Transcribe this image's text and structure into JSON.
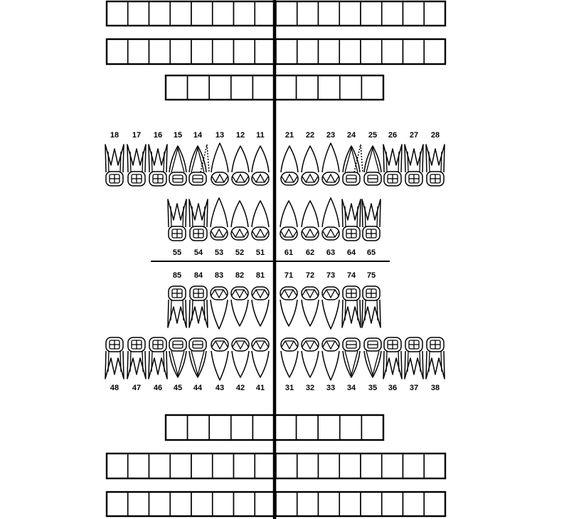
{
  "colors": {
    "ink": "#000000",
    "paper": "#ffffff"
  },
  "upper_permanent": [
    "18",
    "17",
    "16",
    "15",
    "14",
    "13",
    "12",
    "11",
    "21",
    "22",
    "23",
    "24",
    "25",
    "26",
    "27",
    "28"
  ],
  "upper_primary": [
    "55",
    "54",
    "53",
    "52",
    "51",
    "61",
    "62",
    "63",
    "64",
    "65"
  ],
  "lower_primary": [
    "85",
    "84",
    "83",
    "82",
    "81",
    "71",
    "72",
    "73",
    "74",
    "75"
  ],
  "lower_permanent": [
    "48",
    "47",
    "46",
    "45",
    "44",
    "43",
    "42",
    "41",
    "31",
    "32",
    "33",
    "34",
    "35",
    "36",
    "37",
    "38"
  ],
  "tooth_kinds": {
    "permanent": [
      "molar",
      "molar",
      "molar",
      "premolar",
      "premolar",
      "canine",
      "incisor",
      "incisor",
      "incisor",
      "incisor",
      "canine",
      "premolar",
      "premolar",
      "molar",
      "molar",
      "molar"
    ],
    "primary": [
      "molar",
      "molar",
      "canine",
      "incisor",
      "incisor",
      "incisor",
      "incisor",
      "canine",
      "molar",
      "molar"
    ]
  },
  "dotted_teeth": [
    "14",
    "24"
  ],
  "box_rows": [
    {
      "id": "upper-box-row-1",
      "count": 16
    },
    {
      "id": "upper-box-row-2",
      "count": 16
    },
    {
      "id": "upper-box-row-3",
      "count": 10
    },
    {
      "id": "lower-box-row-1",
      "count": 10
    },
    {
      "id": "lower-box-row-2",
      "count": 16
    },
    {
      "id": "lower-box-row-3",
      "count": 16
    }
  ]
}
